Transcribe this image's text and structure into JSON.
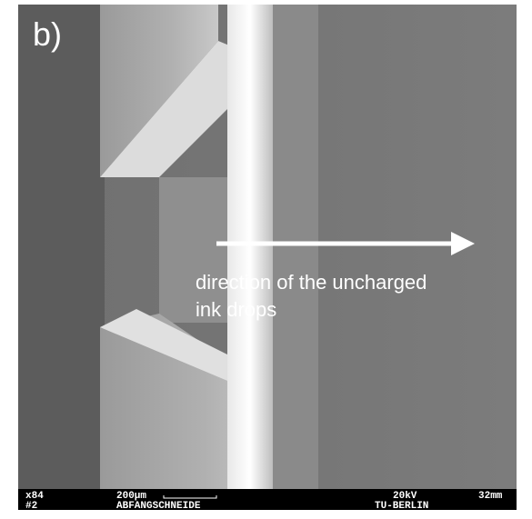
{
  "panel_label": "b)",
  "annotation": [
    "direction of the uncharged",
    "ink drops"
  ],
  "info_bar": {
    "magnification": "x84",
    "image_number": "#2",
    "scale": "200µm",
    "sample": "ABFANGSCHNEIDE",
    "voltage": "20kV",
    "institution": "TU-BERLIN",
    "working_distance": "32mm"
  }
}
